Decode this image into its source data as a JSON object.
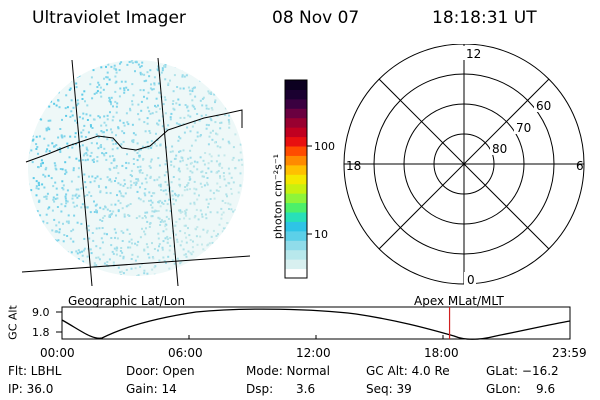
{
  "header": {
    "instrument": "Ultraviolet Imager",
    "date": "08 Nov 07",
    "time": "18:18:31 UT"
  },
  "colorbar": {
    "label": "photon cm⁻²s⁻¹",
    "ticks": [
      "100",
      "10"
    ],
    "colors": [
      "#ffffff",
      "#d8f0f0",
      "#b8e8ec",
      "#90dcea",
      "#5cd0e8",
      "#2ec4e6",
      "#28e0b8",
      "#4cf06a",
      "#8ef43a",
      "#c8f010",
      "#f4e800",
      "#ffc000",
      "#ff8a00",
      "#ff4c00",
      "#e81010",
      "#c00020",
      "#980030",
      "#6a0040",
      "#3a0040",
      "#1a0030",
      "#0c0020"
    ]
  },
  "polar_plot": {
    "mlt_labels": {
      "top": "12",
      "bottom": "0",
      "left": "18",
      "right": "6"
    },
    "lat_labels": [
      "60",
      "70",
      "80"
    ]
  },
  "timeline": {
    "left_title": "Geographic Lat/Lon",
    "right_title": "Apex MLat/MLT",
    "axis_title": "GC Alt",
    "y_ticks": [
      "9.0",
      "1.8"
    ],
    "x_ticks": [
      "00:00",
      "06:00",
      "12:00",
      "18:00",
      "23:59"
    ],
    "marker_time_hours": 18.31,
    "marker_color": "#d02020"
  },
  "status": {
    "row1": {
      "flt": "Flt: LBHL",
      "door": "Door: Open",
      "mode": "Mode: Normal",
      "gcalt": "GC Alt: 4.0 Re",
      "glat": "GLat: −16.2"
    },
    "row2": {
      "ip": "IP: 36.0",
      "gain": "Gain: 14",
      "dsp": "Dsp:      3.6",
      "seq": "Seq: 39",
      "glon": "GLon:    9.6"
    }
  }
}
